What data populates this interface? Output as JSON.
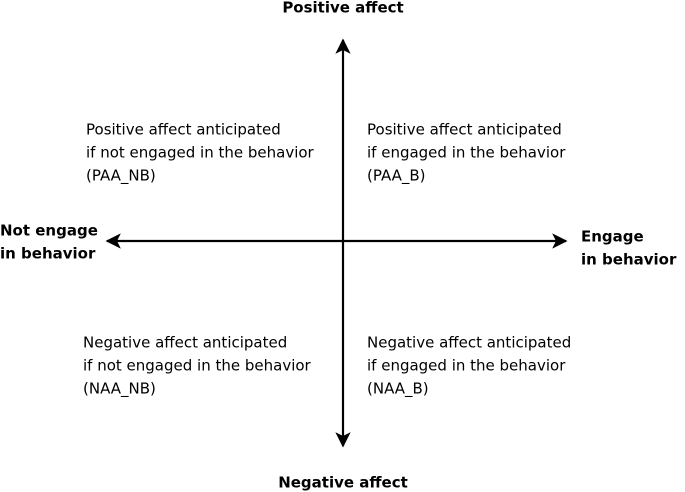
{
  "axes": {
    "top": "Positive affect",
    "bottom": "Negative affect",
    "left": [
      "Not engage",
      "in behavior"
    ],
    "right": [
      "Engage",
      "in behavior"
    ]
  },
  "quadrants": [
    {
      "lines": [
        "Positive affect anticipated",
        "if not engaged in the behavior",
        "(PAA_NB)"
      ]
    },
    {
      "lines": [
        "Positive affect anticipated",
        "if engaged in the behavior",
        "(PAA_B)"
      ]
    },
    {
      "lines": [
        "Negative affect anticipated",
        "if not engaged in the behavior",
        "(NAA_NB)"
      ]
    },
    {
      "lines": [
        "Negative affect anticipated",
        "if engaged in the behavior",
        "(NAA_B)"
      ]
    }
  ]
}
